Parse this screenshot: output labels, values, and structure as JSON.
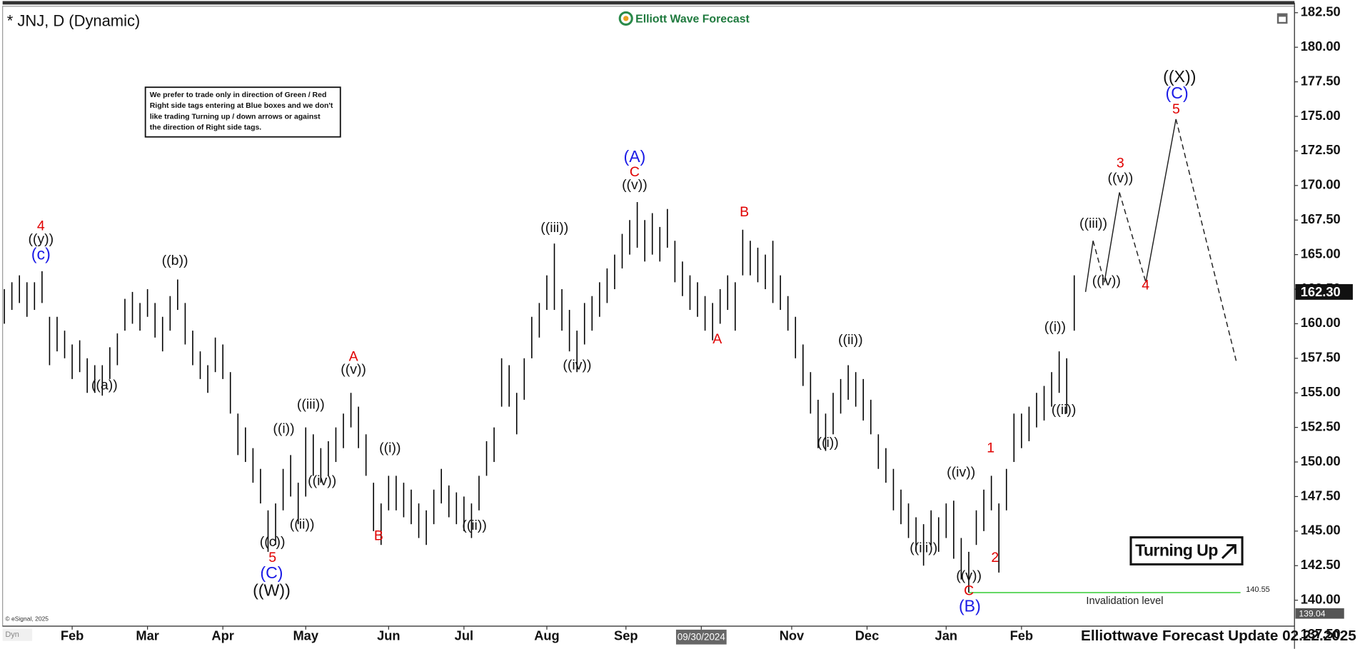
{
  "chart_data": {
    "type": "ohlc",
    "title": "* JNJ, D (Dynamic)",
    "logo": "Elliott Wave Forecast",
    "note": [
      "We prefer to trade only in direction of Green / Red",
      "Right side tags entering at Blue boxes and we don't",
      "like trading Turning up / down arrows or against",
      "the direction of Right side tags."
    ],
    "signal": "Turning Up",
    "footer": "Elliottwave Forecast Update 02.22.2025",
    "copyright": "© eSignal, 2025",
    "mode": "Dyn",
    "color": "#000000",
    "ylim": [
      136.8,
      182.9
    ],
    "yticks": [
      {
        "value": 137.5,
        "label": "137.50"
      },
      {
        "value": 140,
        "label": "140.00"
      },
      {
        "value": 142.5,
        "label": "142.50"
      },
      {
        "value": 145,
        "label": "145.00"
      },
      {
        "value": 147.5,
        "label": "147.50"
      },
      {
        "value": 150,
        "label": "150.00"
      },
      {
        "value": 152.5,
        "label": "152.50"
      },
      {
        "value": 155,
        "label": "155.00"
      },
      {
        "value": 157.5,
        "label": "157.50"
      },
      {
        "value": 160,
        "label": "160.00"
      },
      {
        "value": 162.5,
        "label": "162.50"
      },
      {
        "value": 165,
        "label": "165.00"
      },
      {
        "value": 167.5,
        "label": "167.50"
      },
      {
        "value": 170,
        "label": "170.00"
      },
      {
        "value": 172.5,
        "label": "172.50"
      },
      {
        "value": 175,
        "label": "175.00"
      },
      {
        "value": 177.5,
        "label": "177.50"
      },
      {
        "value": 180,
        "label": "180.00"
      },
      {
        "value": 182.5,
        "label": "182.50"
      }
    ],
    "xlim": [
      0,
      342
    ],
    "xticks": [
      {
        "value": 18,
        "label": "Feb"
      },
      {
        "value": 38,
        "label": "Mar"
      },
      {
        "value": 58,
        "label": "Apr"
      },
      {
        "value": 80,
        "label": "May"
      },
      {
        "value": 102,
        "label": "Jun"
      },
      {
        "value": 122,
        "label": "Jul"
      },
      {
        "value": 144,
        "label": "Aug"
      },
      {
        "value": 165,
        "label": "Sep"
      },
      {
        "value": 185,
        "label": "09/30/2024"
      },
      {
        "value": 209,
        "label": "Nov"
      },
      {
        "value": 229,
        "label": "Dec"
      },
      {
        "value": 250,
        "label": "Jan"
      },
      {
        "value": 270,
        "label": "Feb"
      }
    ],
    "x": [
      0,
      2,
      4,
      6,
      8,
      10,
      12,
      14,
      16,
      18,
      20,
      22,
      24,
      26,
      28,
      30,
      32,
      34,
      36,
      38,
      40,
      42,
      44,
      46,
      48,
      50,
      52,
      54,
      56,
      58,
      60,
      62,
      64,
      66,
      68,
      70,
      72,
      74,
      76,
      78,
      80,
      82,
      84,
      86,
      88,
      90,
      92,
      94,
      96,
      98,
      100,
      102,
      104,
      106,
      108,
      110,
      112,
      114,
      116,
      118,
      120,
      122,
      124,
      126,
      128,
      130,
      132,
      134,
      136,
      138,
      140,
      142,
      144,
      146,
      148,
      150,
      152,
      154,
      156,
      158,
      160,
      162,
      164,
      166,
      168,
      170,
      172,
      174,
      176,
      178,
      180,
      182,
      184,
      186,
      188,
      190,
      192,
      194,
      196,
      198,
      200,
      202,
      204,
      206,
      208,
      210,
      212,
      214,
      216,
      218,
      220,
      222,
      224,
      226,
      228,
      230,
      232,
      234,
      236,
      238,
      240,
      242,
      244,
      246,
      248,
      250,
      252,
      254,
      256,
      258,
      260,
      262,
      264,
      266,
      268,
      270,
      272,
      274,
      276,
      278,
      280,
      282,
      284
    ],
    "high": [
      162.5,
      163,
      163.5,
      163,
      163,
      163.8,
      160.5,
      160.5,
      159.5,
      158.5,
      158.8,
      157.5,
      157,
      157,
      158.3,
      159.3,
      161.8,
      162.3,
      161.5,
      162.5,
      161.5,
      160.5,
      162,
      163.2,
      161.5,
      159.5,
      158,
      157,
      159,
      158.5,
      156.5,
      153.5,
      152.5,
      151,
      149.5,
      146.5,
      147,
      149.5,
      150.5,
      148.5,
      152.5,
      152,
      151,
      151.5,
      152.5,
      153.5,
      155,
      154,
      152,
      148.5,
      147,
      149,
      149,
      148.5,
      148,
      147,
      146.5,
      148,
      149.5,
      148.3,
      147.8,
      147.5,
      147,
      149,
      151.5,
      152.5,
      157.5,
      157,
      155,
      157.5,
      160.5,
      161.5,
      163.5,
      165.8,
      162.5,
      161,
      159.5,
      161.5,
      162,
      163,
      164,
      165,
      166.5,
      167.5,
      168.8,
      167.5,
      168,
      167,
      168.3,
      166,
      164.5,
      163.5,
      163,
      162,
      161.5,
      162.5,
      163.5,
      163,
      166.8,
      166,
      165.5,
      165,
      166,
      163.5,
      162,
      160.5,
      158.5,
      156.5,
      154.5,
      153.5,
      155,
      156,
      157,
      156.5,
      156,
      154.5,
      152,
      151,
      149.5,
      148,
      147,
      146,
      145.5,
      146.5,
      146,
      147,
      147.2,
      144.5,
      143.5,
      146.5,
      148,
      149,
      147,
      149.5,
      153.5,
      153.5,
      154,
      155,
      155.5,
      156.5,
      158,
      157.5,
      163.5
    ],
    "low": [
      160,
      161,
      161.5,
      160.5,
      161,
      161.5,
      157,
      158,
      157.5,
      156,
      156.5,
      155,
      155,
      154.8,
      156,
      157,
      159.5,
      160,
      159.5,
      160.5,
      159,
      158,
      159.5,
      161,
      158.5,
      157,
      156,
      155,
      156.5,
      156,
      153.5,
      150.5,
      150,
      148.5,
      147,
      143.5,
      144,
      146.5,
      147.5,
      145.5,
      147.5,
      149,
      148.5,
      149,
      150,
      151,
      152.5,
      151,
      149,
      145,
      144,
      146.5,
      146.5,
      146,
      145.5,
      144.5,
      144,
      145.5,
      147,
      146,
      145.5,
      145,
      144.5,
      146.5,
      149,
      150,
      154,
      154,
      152,
      154.5,
      157.5,
      159,
      161,
      161,
      159.5,
      158,
      156.5,
      158.5,
      159.5,
      160.5,
      161.5,
      162.5,
      164,
      165,
      165.5,
      164.5,
      165,
      164.5,
      165.5,
      163,
      162,
      161,
      160.5,
      159.5,
      158.8,
      160,
      161,
      159.5,
      163.5,
      163.5,
      163,
      162.5,
      161.5,
      161,
      159.5,
      157.5,
      155.5,
      153.5,
      151,
      150.8,
      152,
      153.5,
      154.5,
      154,
      153,
      152,
      149.5,
      148.5,
      146.5,
      145.5,
      144.5,
      143.5,
      142.5,
      144,
      143.5,
      144.5,
      143,
      141.5,
      140.55,
      144,
      145,
      146.5,
      142,
      146.5,
      150,
      151,
      151.5,
      152.5,
      153,
      154,
      155,
      153.5,
      159.5
    ],
    "last_price": {
      "value": 162.3,
      "label": "162.30"
    },
    "prior_marker": 139.04,
    "invalidation": {
      "value": 140.55,
      "text": "Invalidation level",
      "color": "#33cc33"
    },
    "projection": {
      "x": [
        287,
        289,
        292,
        296,
        303,
        311,
        327
      ],
      "values": [
        162.3,
        166,
        163,
        169.5,
        163,
        174.8,
        157.3
      ]
    },
    "wave_labels": [
      {
        "text": "4",
        "color": "#e00000"
      },
      {
        "text": "((y))",
        "color": "#111111"
      },
      {
        "text": "(c)",
        "color": "#1a1ae6"
      },
      {
        "text": "((a))",
        "color": "#111111"
      },
      {
        "text": "((b))",
        "color": "#111111"
      },
      {
        "text": "((c))",
        "color": "#111111"
      },
      {
        "text": "5",
        "color": "#e00000"
      },
      {
        "text": "(C)",
        "color": "#1a1ae6"
      },
      {
        "text": "((W))",
        "color": "#111111"
      },
      {
        "text": "((i))",
        "color": "#111111"
      },
      {
        "text": "((ii))",
        "color": "#111111"
      },
      {
        "text": "((iii))",
        "color": "#111111"
      },
      {
        "text": "((iv))",
        "color": "#111111"
      },
      {
        "text": "A",
        "color": "#e00000"
      },
      {
        "text": "((v))",
        "color": "#111111"
      },
      {
        "text": "B",
        "color": "#e00000"
      },
      {
        "text": "((i))",
        "color": "#111111"
      },
      {
        "text": "((ii))",
        "color": "#111111"
      },
      {
        "text": "((iii))",
        "color": "#111111"
      },
      {
        "text": "((iv))",
        "color": "#111111"
      },
      {
        "text": "(A)",
        "color": "#1a1ae6"
      },
      {
        "text": "C",
        "color": "#e00000"
      },
      {
        "text": "((v))",
        "color": "#111111"
      },
      {
        "text": "B",
        "color": "#e00000"
      },
      {
        "text": "A",
        "color": "#e00000"
      },
      {
        "text": "((i))",
        "color": "#111111"
      },
      {
        "text": "((ii))",
        "color": "#111111"
      },
      {
        "text": "((iii))",
        "color": "#111111"
      },
      {
        "text": "((iv))",
        "color": "#111111"
      },
      {
        "text": "((v))",
        "color": "#111111"
      },
      {
        "text": "C",
        "color": "#e00000"
      },
      {
        "text": "(B)",
        "color": "#1a1ae6"
      },
      {
        "text": "1",
        "color": "#e00000"
      },
      {
        "text": "2",
        "color": "#e00000"
      },
      {
        "text": "((i))",
        "color": "#111111"
      },
      {
        "text": "((ii))",
        "color": "#111111"
      },
      {
        "text": "((iii))",
        "color": "#111111"
      },
      {
        "text": "((iv))",
        "color": "#111111"
      },
      {
        "text": "4",
        "color": "#e00000"
      },
      {
        "text": "((v))",
        "color": "#111111"
      },
      {
        "text": "3",
        "color": "#e00000"
      },
      {
        "text": "5",
        "color": "#e00000"
      },
      {
        "text": "(C)",
        "color": "#1a1ae6"
      },
      {
        "text": "((X))",
        "color": "#111111"
      }
    ]
  }
}
